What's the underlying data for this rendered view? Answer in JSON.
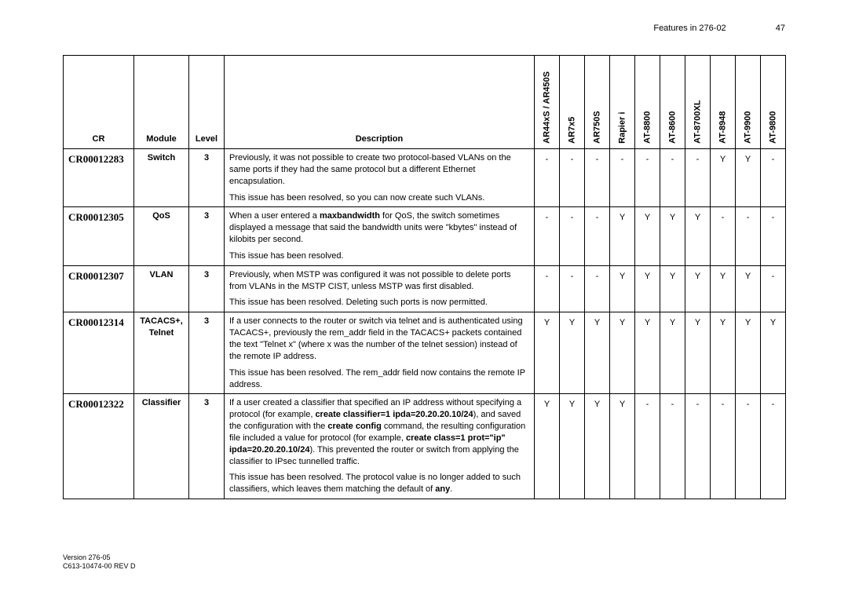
{
  "header": {
    "title": "Features in 276-02",
    "page_number": "47"
  },
  "footer": {
    "line1": "Version 276-05",
    "line2": "C613-10474-00 REV D"
  },
  "columns": {
    "cr": "CR",
    "module": "Module",
    "level": "Level",
    "description": "Description",
    "products": [
      "AR44xS / AR450S",
      "AR7x5",
      "AR750S",
      "Rapier i",
      "AT-8800",
      "AT-8600",
      "AT-8700XL",
      "AT-8948",
      "AT-9900",
      "AT-9800"
    ]
  },
  "rows": [
    {
      "cr": "CR00012283",
      "module": "Switch",
      "level": "3",
      "desc_html": "Previously, it was not possible to create two protocol-based VLANs on the same ports if they had the same protocol but a different Ethernet encapsulation.|This issue has been resolved, so you can now create such VLANs.",
      "flags": [
        "-",
        "-",
        "-",
        "-",
        "-",
        "-",
        "-",
        "Y",
        "Y",
        "-"
      ]
    },
    {
      "cr": "CR00012305",
      "module": "QoS",
      "level": "3",
      "desc_html": "When a user entered a <b>maxbandwidth</b> for QoS, the switch sometimes displayed a message that said the bandwidth units were \"kbytes\" instead of kilobits per second.|This issue has been resolved.",
      "flags": [
        "-",
        "-",
        "-",
        "Y",
        "Y",
        "Y",
        "Y",
        "-",
        "-",
        "-"
      ]
    },
    {
      "cr": "CR00012307",
      "module": "VLAN",
      "level": "3",
      "desc_html": "Previously, when MSTP was configured it was not possible to delete ports from VLANs in the MSTP CIST, unless MSTP was first disabled.|This issue has been resolved. Deleting such ports is now permitted.",
      "flags": [
        "-",
        "-",
        "-",
        "Y",
        "Y",
        "Y",
        "Y",
        "Y",
        "Y",
        "-"
      ]
    },
    {
      "cr": "CR00012314",
      "module": "TACACS+, Telnet",
      "level": "3",
      "desc_html": "If a user connects to the router or switch via telnet and is authenticated using TACACS+, previously the rem_addr field in the TACACS+ packets contained the text \"Telnet x\" (where x was the number of the telnet session) instead of the remote IP address.|This issue has been resolved. The rem_addr field now contains the remote IP address.",
      "flags": [
        "Y",
        "Y",
        "Y",
        "Y",
        "Y",
        "Y",
        "Y",
        "Y",
        "Y",
        "Y"
      ]
    },
    {
      "cr": "CR00012322",
      "module": "Classifier",
      "level": "3",
      "desc_html": "If a user created a classifier that specified an IP address without specifying a protocol (for example, <b>create classifier=1 ipda=20.20.20.10/24</b>), and saved the configuration with the <b>create config</b> command, the resulting configuration file included a value for protocol (for example, <b>create class=1 prot=\"ip\" ipda=20.20.20.10/24</b>). This prevented the router or switch from applying the classifier to IPsec tunnelled traffic.|This issue has been resolved. The protocol value is no longer added to such classifiers, which leaves them matching the default of <b>any</b>.",
      "flags": [
        "Y",
        "Y",
        "Y",
        "Y",
        "-",
        "-",
        "-",
        "-",
        "-",
        "-"
      ]
    }
  ]
}
